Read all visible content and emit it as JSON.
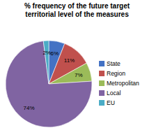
{
  "chart_data": {
    "type": "pie",
    "title": "% frequency of the future target\nterritorial level of the measures",
    "categories": [
      "State",
      "Region",
      "Metropolitan",
      "Local",
      "EU"
    ],
    "values": [
      6,
      11,
      7,
      74,
      2
    ],
    "value_labels": [
      "6%",
      "11%",
      "7%",
      "74%",
      "2%"
    ],
    "colors": [
      "#4472C4",
      "#C0504D",
      "#9BBB59",
      "#8064A2",
      "#4BACC6"
    ],
    "data_labels": true,
    "legend": "right"
  }
}
